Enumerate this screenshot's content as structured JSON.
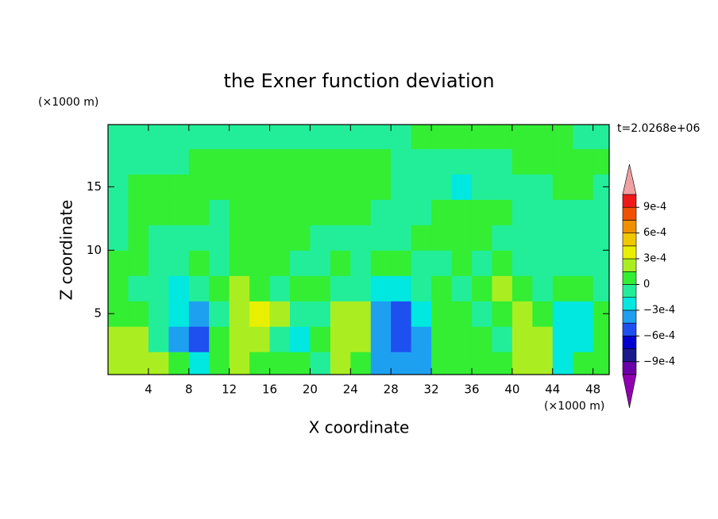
{
  "chart_data": {
    "type": "contour",
    "title": "the Exner function deviation",
    "xlabel": "X coordinate",
    "ylabel": "Z coordinate",
    "x_unit": "(×1000 m)",
    "y_unit": "(×1000 m)",
    "time_label": "t=2.0268e+06",
    "xlim": [
      0,
      49.6
    ],
    "ylim": [
      0.2,
      19.9
    ],
    "xticks": [
      4,
      8,
      12,
      16,
      20,
      24,
      28,
      32,
      36,
      40,
      44,
      48
    ],
    "yticks": [
      5,
      10,
      15
    ],
    "x": [
      1,
      3,
      5,
      7,
      9,
      11,
      13,
      15,
      17,
      19,
      21,
      23,
      25,
      27,
      29,
      31,
      33,
      35,
      37,
      39,
      41,
      43,
      45,
      47,
      49
    ],
    "y": [
      1,
      3,
      5,
      7,
      9,
      11,
      13,
      15,
      17,
      19
    ],
    "z": [
      [
        0.0002,
        0.0002,
        0.0002,
        8e-05,
        -0.0002,
        8e-05,
        0.0002,
        8e-05,
        8e-05,
        8e-05,
        -8e-05,
        0.0002,
        8e-05,
        -0.0004,
        -0.0004,
        -0.0004,
        8e-05,
        8e-05,
        8e-05,
        8e-05,
        0.0002,
        0.0002,
        -0.0002,
        8e-05,
        8e-05
      ],
      [
        0.0002,
        0.0002,
        -8e-05,
        -0.0004,
        -0.0005,
        8e-05,
        0.0002,
        0.0002,
        -8e-05,
        -0.0002,
        8e-05,
        0.0002,
        0.0002,
        -0.0004,
        -0.0005,
        -0.0004,
        8e-05,
        8e-05,
        8e-05,
        -8e-05,
        0.0002,
        0.0002,
        -0.0002,
        -0.0002,
        8e-05
      ],
      [
        8e-05,
        8e-05,
        -8e-05,
        -0.0002,
        -0.0004,
        -8e-05,
        0.0002,
        0.00035,
        0.0002,
        -8e-05,
        -8e-05,
        0.0002,
        0.0002,
        -0.0004,
        -0.0005,
        -0.0002,
        8e-05,
        8e-05,
        -8e-05,
        8e-05,
        0.0002,
        8e-05,
        -0.0002,
        -0.0002,
        8e-05
      ],
      [
        8e-05,
        -8e-05,
        -8e-05,
        -0.0002,
        -8e-05,
        8e-05,
        0.0002,
        8e-05,
        -8e-05,
        8e-05,
        8e-05,
        -8e-05,
        -8e-05,
        -0.0002,
        -0.0002,
        -8e-05,
        8e-05,
        -8e-05,
        8e-05,
        0.0002,
        8e-05,
        -8e-05,
        8e-05,
        8e-05,
        -8e-05
      ],
      [
        8e-05,
        8e-05,
        -8e-05,
        -8e-05,
        8e-05,
        -8e-05,
        8e-05,
        8e-05,
        8e-05,
        -8e-05,
        -8e-05,
        8e-05,
        -8e-05,
        8e-05,
        8e-05,
        -8e-05,
        -8e-05,
        8e-05,
        -8e-05,
        8e-05,
        -8e-05,
        -8e-05,
        -8e-05,
        -8e-05,
        -8e-05
      ],
      [
        -8e-05,
        8e-05,
        -8e-05,
        -8e-05,
        -8e-05,
        -8e-05,
        8e-05,
        8e-05,
        8e-05,
        8e-05,
        -8e-05,
        -8e-05,
        -8e-05,
        -8e-05,
        -8e-05,
        8e-05,
        8e-05,
        8e-05,
        8e-05,
        -8e-05,
        -8e-05,
        -8e-05,
        -8e-05,
        -8e-05,
        -8e-05
      ],
      [
        -8e-05,
        8e-05,
        8e-05,
        8e-05,
        8e-05,
        -8e-05,
        8e-05,
        8e-05,
        8e-05,
        8e-05,
        8e-05,
        8e-05,
        8e-05,
        -8e-05,
        -8e-05,
        -8e-05,
        8e-05,
        8e-05,
        8e-05,
        8e-05,
        -8e-05,
        -8e-05,
        -8e-05,
        -8e-05,
        -8e-05
      ],
      [
        -8e-05,
        8e-05,
        8e-05,
        8e-05,
        8e-05,
        8e-05,
        8e-05,
        8e-05,
        8e-05,
        8e-05,
        8e-05,
        8e-05,
        8e-05,
        8e-05,
        -8e-05,
        -8e-05,
        -8e-05,
        -0.0002,
        -8e-05,
        -8e-05,
        -8e-05,
        -8e-05,
        8e-05,
        8e-05,
        -8e-05
      ],
      [
        -8e-05,
        -8e-05,
        -8e-05,
        -8e-05,
        8e-05,
        8e-05,
        8e-05,
        8e-05,
        8e-05,
        8e-05,
        8e-05,
        8e-05,
        8e-05,
        8e-05,
        -8e-05,
        -8e-05,
        -8e-05,
        -8e-05,
        -8e-05,
        -8e-05,
        8e-05,
        8e-05,
        8e-05,
        8e-05,
        8e-05
      ],
      [
        -8e-05,
        -8e-05,
        -8e-05,
        -8e-05,
        -8e-05,
        -8e-05,
        -8e-05,
        -8e-05,
        -8e-05,
        -8e-05,
        -8e-05,
        -8e-05,
        -8e-05,
        -8e-05,
        -8e-05,
        8e-05,
        8e-05,
        8e-05,
        8e-05,
        8e-05,
        8e-05,
        8e-05,
        8e-05,
        -8e-05,
        -8e-05
      ]
    ],
    "levels": [
      -0.00105,
      -0.0009,
      -0.00075,
      -0.0006,
      -0.00045,
      -0.0003,
      -0.00015,
      0,
      0.00015,
      0.0003,
      0.00045,
      0.0006,
      0.00075,
      0.0009,
      0.00105
    ],
    "colors": [
      "#6a00a8",
      "#1a1a8c",
      "#0000d0",
      "#1e50f0",
      "#1ea0f0",
      "#00e8e0",
      "#22ee99",
      "#33ee33",
      "#aaee22",
      "#e8f000",
      "#f0c800",
      "#f09000",
      "#f05000",
      "#f01818"
    ],
    "over_color": "#f0a0a0",
    "under_color": "#9000b0",
    "cbar_ticks": [
      {
        "value": 0.0009,
        "label": "9e-4"
      },
      {
        "value": 0.0006,
        "label": "6e-4"
      },
      {
        "value": 0.0003,
        "label": "3e-4"
      },
      0,
      {
        "value": -0.0003,
        "label": "−3e-4"
      },
      {
        "value": -0.0006,
        "label": "−6e-4"
      },
      {
        "value": -0.0009,
        "label": "−9e-4"
      }
    ]
  }
}
